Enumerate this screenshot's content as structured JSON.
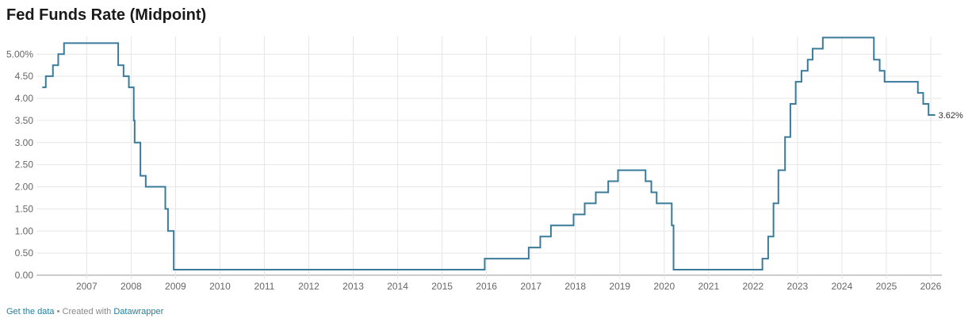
{
  "chart_data": {
    "type": "line",
    "step": "after",
    "title": "Fed Funds Rate (Midpoint)",
    "color": "#3a7b9a",
    "grid": true,
    "x": [
      2006.0,
      2006.08,
      2006.24,
      2006.36,
      2006.49,
      2007.71,
      2007.83,
      2007.95,
      2008.06,
      2008.08,
      2008.21,
      2008.33,
      2008.77,
      2008.83,
      2008.96,
      2015.96,
      2016.95,
      2017.21,
      2017.45,
      2017.96,
      2018.21,
      2018.46,
      2018.74,
      2018.96,
      2019.58,
      2019.71,
      2019.83,
      2020.17,
      2020.21,
      2022.21,
      2022.34,
      2022.46,
      2022.57,
      2022.72,
      2022.84,
      2022.96,
      2023.09,
      2023.23,
      2023.34,
      2023.57,
      2024.72,
      2024.85,
      2024.96,
      2025.71,
      2025.83,
      2025.95,
      2026.1
    ],
    "values": [
      4.25,
      4.5,
      4.75,
      5.0,
      5.25,
      4.75,
      4.5,
      4.25,
      3.5,
      3.0,
      2.25,
      2.0,
      1.5,
      1.0,
      0.125,
      0.375,
      0.625,
      0.875,
      1.125,
      1.375,
      1.625,
      1.875,
      2.125,
      2.375,
      2.125,
      1.875,
      1.625,
      1.125,
      0.125,
      0.375,
      0.875,
      1.625,
      2.375,
      3.125,
      3.875,
      4.375,
      4.625,
      4.875,
      5.125,
      5.375,
      4.875,
      4.625,
      4.375,
      4.125,
      3.875,
      3.625,
      3.625
    ],
    "value_labels": [
      null,
      null,
      null,
      null,
      null,
      null,
      null,
      null,
      null,
      null,
      null,
      null,
      null,
      null,
      null,
      null,
      null,
      null,
      null,
      null,
      null,
      null,
      null,
      null,
      null,
      null,
      null,
      null,
      null,
      null,
      null,
      null,
      null,
      null,
      null,
      null,
      null,
      null,
      null,
      null,
      null,
      null,
      null,
      null,
      null,
      null,
      "3.62%"
    ],
    "xlim": [
      2005.87,
      2026.25
    ],
    "ylim": [
      0,
      5.4
    ],
    "xticks": [
      2007,
      2008,
      2009,
      2010,
      2011,
      2012,
      2013,
      2014,
      2015,
      2016,
      2017,
      2018,
      2019,
      2020,
      2021,
      2022,
      2023,
      2024,
      2025,
      2026
    ],
    "yticks": [
      {
        "value": 0,
        "label": "0.00"
      },
      {
        "value": 0.5,
        "label": "0.50"
      },
      {
        "value": 1,
        "label": "1.00"
      },
      {
        "value": 1.5,
        "label": "1.50"
      },
      {
        "value": 2,
        "label": "2.00"
      },
      {
        "value": 2.5,
        "label": "2.50"
      },
      {
        "value": 3,
        "label": "3.00"
      },
      {
        "value": 3.5,
        "label": "3.50"
      },
      {
        "value": 4,
        "label": "4.00"
      },
      {
        "value": 4.5,
        "label": "4.50"
      },
      {
        "value": 5,
        "label": "5.00%"
      }
    ]
  },
  "footer": {
    "data_link": "Get the data",
    "separator": " • Created with ",
    "brand": "Datawrapper"
  }
}
